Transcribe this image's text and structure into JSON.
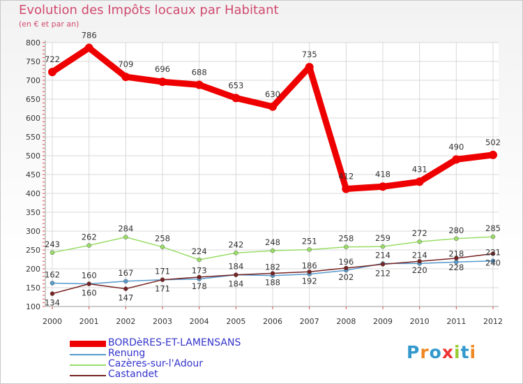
{
  "title": "Evolution des Impôts locaux par Habitant",
  "subtitle": "(en € et par an)",
  "logo": "Proxiti",
  "chart_data": {
    "type": "line",
    "title": "Evolution des Impôts locaux par Habitant",
    "ylabel": "(en € et par an)",
    "xlabel": "",
    "x": [
      "2000",
      "2001",
      "2002",
      "2003",
      "2004",
      "2005",
      "2006",
      "2007",
      "2008",
      "2009",
      "2010",
      "2011",
      "2012"
    ],
    "ylim": [
      100,
      800
    ],
    "yticks": [
      100,
      150,
      200,
      250,
      300,
      350,
      400,
      450,
      500,
      550,
      600,
      650,
      700,
      750,
      800
    ],
    "grid": true,
    "legend_position": "bottom-left",
    "series": [
      {
        "name": "BORDèRES-ET-LAMENSANS",
        "color": "#ee0000",
        "values": [
          722,
          786,
          709,
          696,
          688,
          653,
          630,
          735,
          412,
          418,
          431,
          490,
          502
        ]
      },
      {
        "name": "Renung",
        "color": "#5599cc",
        "values": [
          162,
          160,
          167,
          171,
          173,
          184,
          182,
          186,
          196,
          214,
          214,
          218,
          221
        ]
      },
      {
        "name": "Cazères-sur-l'Adour",
        "color": "#99dd66",
        "values": [
          243,
          262,
          284,
          258,
          224,
          242,
          248,
          251,
          258,
          259,
          272,
          280,
          285
        ]
      },
      {
        "name": "Castandet",
        "color": "#772222",
        "values": [
          134,
          160,
          147,
          171,
          178,
          184,
          188,
          192,
          202,
          212,
          220,
          228,
          240
        ]
      }
    ],
    "labels_above": [
      [
        "722",
        "786",
        "709",
        "696",
        "688",
        "653",
        "630",
        "735",
        "412",
        "418",
        "431",
        "490",
        "502"
      ],
      [
        "162",
        "160",
        "167",
        "171",
        "173",
        "184",
        "182",
        "186",
        "196",
        "214",
        "214",
        "218",
        "221"
      ],
      [
        "243",
        "262",
        "284",
        "258",
        "224",
        "242",
        "248",
        "251",
        "258",
        "259",
        "272",
        "280",
        "285"
      ],
      [
        "134",
        "160",
        "147",
        "171",
        "178",
        "184",
        "188",
        "192",
        "202",
        "212",
        "220",
        "228",
        "240"
      ]
    ]
  }
}
